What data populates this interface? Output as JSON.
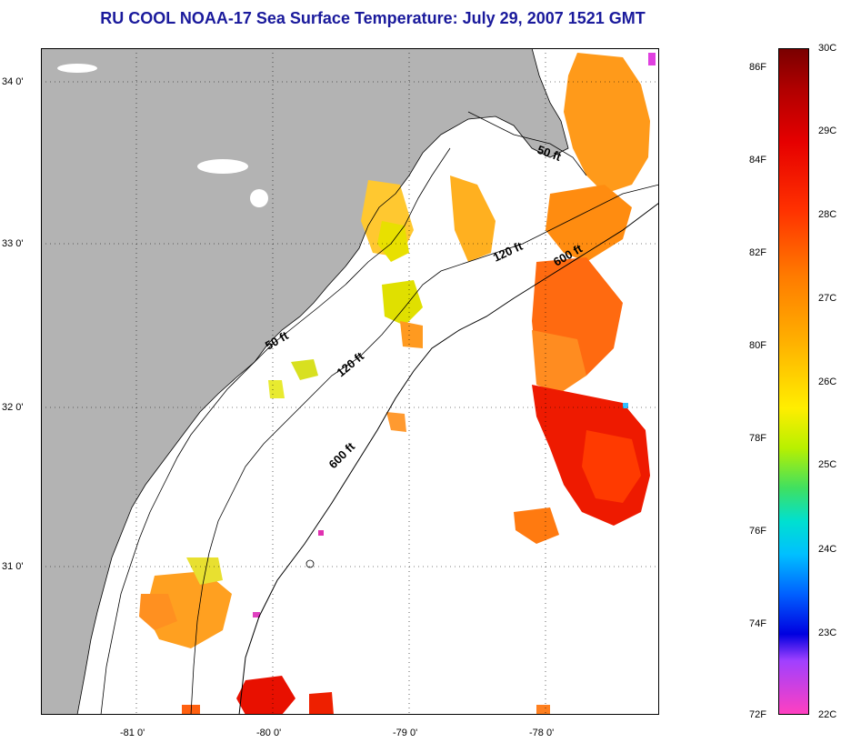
{
  "title": "RU COOL  NOAA-17  Sea Surface Temperature:  July 29, 2007 1521 GMT",
  "axes": {
    "lat_labels": [
      "34 0'",
      "33 0'",
      "32 0'",
      "31 0'"
    ],
    "lon_labels": [
      "-81 0'",
      "-80 0'",
      "-79 0'",
      "-78 0'"
    ]
  },
  "contours": {
    "label_50_north": "50 ft",
    "label_120_north": "120 ft",
    "label_600_north": "600 ft",
    "label_50_mid": "50 ft",
    "label_120_mid": "120 ft",
    "label_600_south": "600 ft"
  },
  "colorbar": {
    "fahrenheit": [
      "86F",
      "84F",
      "82F",
      "80F",
      "78F",
      "76F",
      "74F",
      "72F"
    ],
    "celsius": [
      "30C",
      "29C",
      "28C",
      "27C",
      "26C",
      "25C",
      "24C",
      "23C",
      "22C"
    ]
  },
  "colors": {
    "land": "#b3b3b3",
    "title": "#1a1a9c"
  }
}
